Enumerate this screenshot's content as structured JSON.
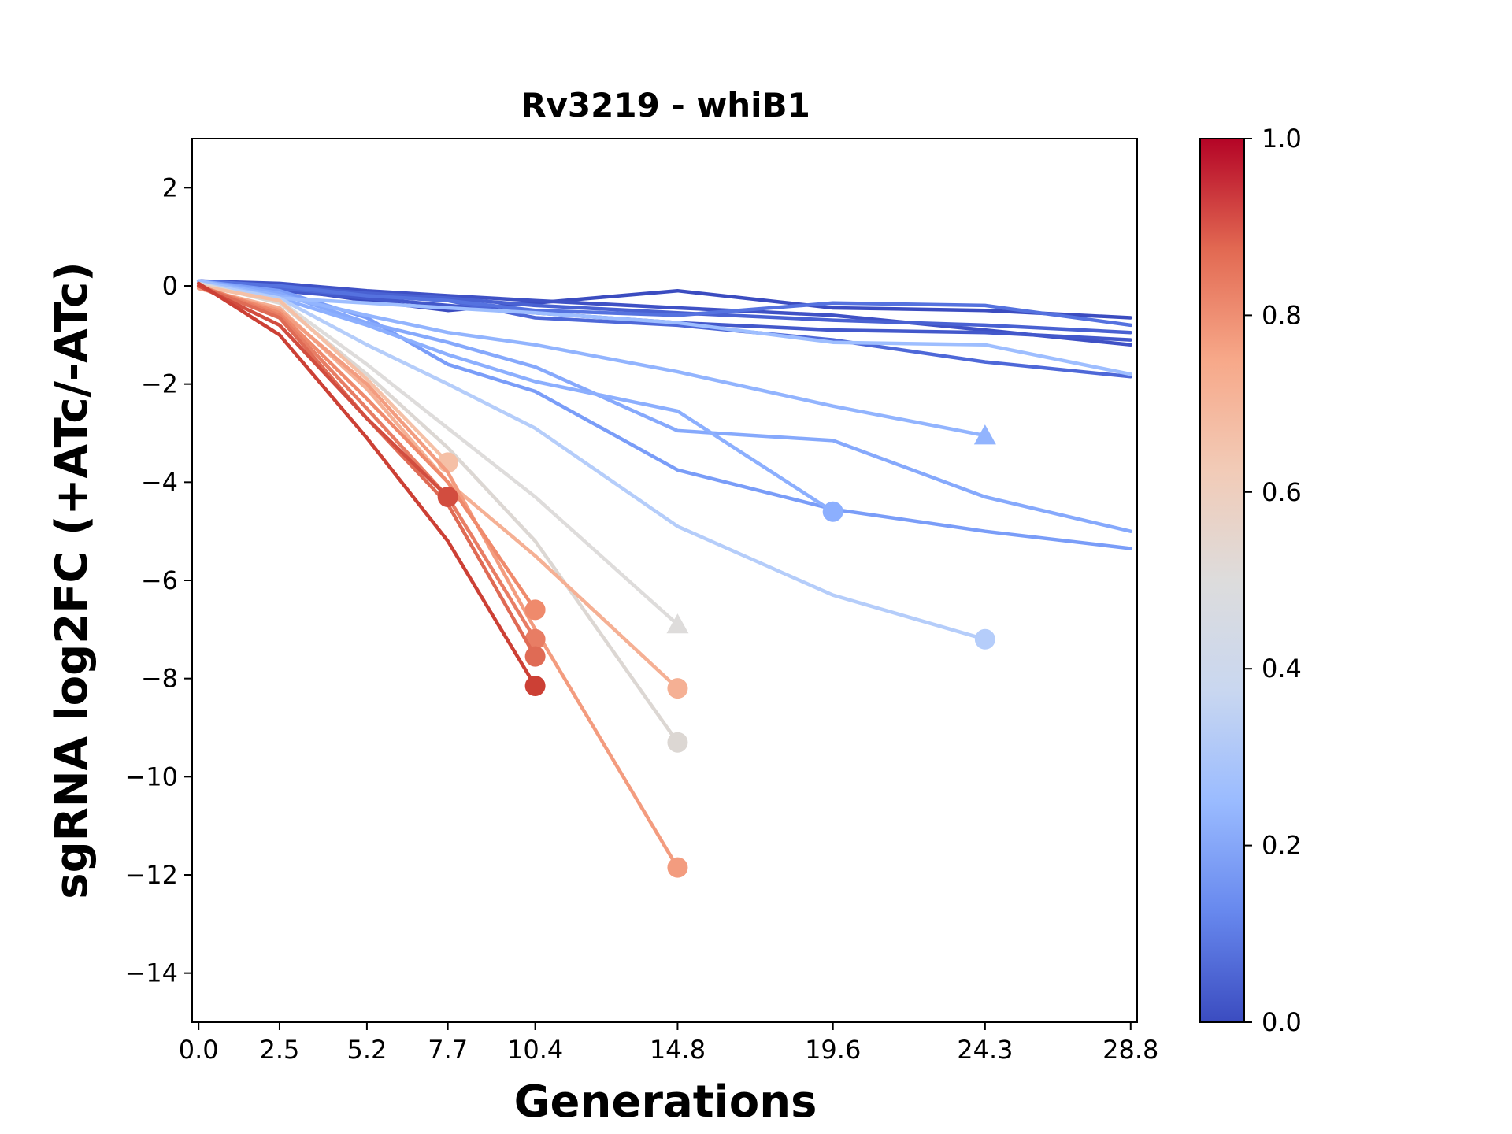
{
  "chart_data": {
    "type": "line",
    "title": "Rv3219 - whiB1",
    "xlabel": "Generations",
    "ylabel": "sgRNA log2FC (+ATc/-ATc)",
    "xticks": [
      0.0,
      2.5,
      5.2,
      7.7,
      10.4,
      14.8,
      19.6,
      24.3,
      28.8
    ],
    "xtick_labels": [
      "0.0",
      "2.5",
      "5.2",
      "7.7",
      "10.4",
      "14.8",
      "19.6",
      "24.3",
      "28.8"
    ],
    "yticks": [
      2,
      0,
      -2,
      -4,
      -6,
      -8,
      -10,
      -12,
      -14
    ],
    "ytick_labels": [
      "2",
      "0",
      "−2",
      "−4",
      "−6",
      "−8",
      "−10",
      "−12",
      "−14"
    ],
    "xlim": [
      -0.2,
      29.0
    ],
    "ylim": [
      -15,
      3
    ],
    "grid": false,
    "colorbar": {
      "colormap": "coolwarm",
      "range": [
        0.0,
        1.0
      ],
      "ticks": [
        0.0,
        0.2,
        0.4,
        0.6,
        0.8,
        1.0
      ],
      "tick_labels": [
        "0.0",
        "0.2",
        "0.4",
        "0.6",
        "0.8",
        "1.0"
      ],
      "stops": [
        "#3b4cc0",
        "#6788ee",
        "#9abbff",
        "#c9d7f0",
        "#dddcdc",
        "#f2cbb7",
        "#f7a889",
        "#e26952",
        "#b40426"
      ]
    },
    "series": [
      {
        "color": "#3b4cc0",
        "x": [
          0.0,
          2.5,
          5.2,
          7.7,
          10.4,
          14.8,
          19.6,
          24.3,
          28.8
        ],
        "y": [
          0.05,
          -0.05,
          -0.3,
          -0.5,
          -0.35,
          -0.1,
          -0.45,
          -0.5,
          -0.65
        ],
        "end_marker": "none"
      },
      {
        "color": "#3f51c5",
        "x": [
          0.0,
          2.5,
          5.2,
          7.7,
          10.4,
          14.8,
          19.6,
          24.3,
          28.8
        ],
        "y": [
          0.1,
          0.05,
          -0.1,
          -0.2,
          -0.3,
          -0.45,
          -0.6,
          -0.9,
          -1.2
        ],
        "end_marker": "none"
      },
      {
        "color": "#4358cb",
        "x": [
          0.0,
          2.5,
          5.2,
          7.7,
          10.4,
          14.8,
          19.6,
          24.3,
          28.8
        ],
        "y": [
          0.05,
          -0.1,
          -0.25,
          -0.4,
          -0.55,
          -0.75,
          -0.9,
          -0.95,
          -1.1
        ],
        "end_marker": "none"
      },
      {
        "color": "#4961d2",
        "x": [
          0.0,
          2.5,
          5.2,
          7.7,
          10.4,
          14.8,
          19.6,
          24.3,
          28.8
        ],
        "y": [
          0.1,
          0.0,
          -0.15,
          -0.25,
          -0.4,
          -0.55,
          -0.7,
          -0.8,
          -0.95
        ],
        "end_marker": "none"
      },
      {
        "color": "#4e68d8",
        "x": [
          0.0,
          2.5,
          5.2,
          7.7,
          10.4,
          14.8,
          19.6,
          24.3,
          28.8
        ],
        "y": [
          0.1,
          -0.05,
          -0.2,
          -0.3,
          -0.65,
          -0.8,
          -1.1,
          -1.55,
          -1.85
        ],
        "end_marker": "none"
      },
      {
        "color": "#5572df",
        "x": [
          0.0,
          2.5,
          5.2,
          7.7,
          10.4,
          14.8,
          19.6,
          24.3,
          28.8
        ],
        "y": [
          0.1,
          0.0,
          -0.2,
          -0.3,
          -0.5,
          -0.6,
          -0.35,
          -0.4,
          -0.8
        ],
        "end_marker": "none"
      },
      {
        "color": "#7a9df8",
        "x": [
          0.0,
          2.5,
          5.2,
          7.7,
          10.4,
          14.8,
          19.6,
          24.3,
          28.8
        ],
        "y": [
          0.1,
          -0.1,
          -0.65,
          -1.6,
          -2.15,
          -3.75,
          -4.55,
          -5.0,
          -5.35
        ],
        "end_marker": "none"
      },
      {
        "color": "#86a9fc",
        "x": [
          0.0,
          2.5,
          5.2,
          7.7,
          10.4,
          14.8,
          19.6,
          24.3,
          28.8
        ],
        "y": [
          0.1,
          -0.15,
          -0.75,
          -1.15,
          -1.65,
          -2.95,
          -3.15,
          -4.3,
          -5.0
        ],
        "end_marker": "none"
      },
      {
        "color": "#92b4fe",
        "x": [
          0.0,
          2.5,
          5.2,
          7.7,
          10.4,
          14.8,
          19.6,
          24.3
        ],
        "y": [
          0.1,
          -0.2,
          -0.6,
          -0.95,
          -1.2,
          -1.75,
          -2.45,
          -3.05
        ],
        "end_marker": "triangle"
      },
      {
        "color": "#8caffe",
        "x": [
          0.0,
          2.5,
          5.2,
          7.7,
          10.4,
          14.8,
          19.6
        ],
        "y": [
          0.05,
          -0.25,
          -0.8,
          -1.4,
          -1.95,
          -2.55,
          -4.6
        ],
        "end_marker": "circle"
      },
      {
        "color": "#9ebeff",
        "x": [
          0.0,
          2.5,
          5.2,
          7.7,
          10.4,
          14.8,
          19.6,
          24.3,
          28.8
        ],
        "y": [
          0.1,
          -0.25,
          -0.35,
          -0.45,
          -0.55,
          -0.75,
          -1.15,
          -1.2,
          -1.8
        ],
        "end_marker": "none"
      },
      {
        "color": "#b5cdfa",
        "x": [
          0.0,
          2.5,
          5.2,
          7.7,
          10.4,
          14.8,
          19.6,
          24.3
        ],
        "y": [
          0.05,
          -0.25,
          -1.2,
          -2.0,
          -2.9,
          -4.9,
          -6.3,
          -7.2
        ],
        "end_marker": "circle"
      },
      {
        "color": "#dedcdb",
        "x": [
          0.0,
          2.5,
          5.2,
          7.7,
          10.4,
          14.8
        ],
        "y": [
          0.0,
          -0.3,
          -1.6,
          -2.9,
          -4.3,
          -6.9
        ],
        "end_marker": "triangle"
      },
      {
        "color": "#dcd7d3",
        "x": [
          0.0,
          2.5,
          5.2,
          7.7,
          10.4,
          14.8
        ],
        "y": [
          0.05,
          -0.35,
          -1.8,
          -3.3,
          -5.2,
          -9.3
        ],
        "end_marker": "circle"
      },
      {
        "color": "#f5c0a6",
        "x": [
          0.0,
          2.5,
          5.2,
          7.7
        ],
        "y": [
          0.0,
          -0.3,
          -1.9,
          -3.6
        ],
        "end_marker": "circle"
      },
      {
        "color": "#f5b094",
        "x": [
          0.0,
          2.5,
          5.2,
          7.7,
          10.4,
          14.8
        ],
        "y": [
          -0.05,
          -0.45,
          -2.1,
          -4.0,
          -5.5,
          -8.2
        ],
        "end_marker": "circle"
      },
      {
        "color": "#f39c7f",
        "x": [
          0.0,
          2.5,
          5.2,
          7.7,
          10.4,
          14.8
        ],
        "y": [
          -0.05,
          -0.5,
          -2.0,
          -3.8,
          -7.0,
          -11.85
        ],
        "end_marker": "circle"
      },
      {
        "color": "#ef8a6c",
        "x": [
          0.0,
          2.5,
          5.2,
          7.7,
          10.4
        ],
        "y": [
          0.0,
          -0.55,
          -2.3,
          -4.0,
          -6.6
        ],
        "end_marker": "circle"
      },
      {
        "color": "#e87d64",
        "x": [
          0.0,
          2.5,
          5.2,
          7.7,
          10.4
        ],
        "y": [
          0.0,
          -0.6,
          -2.5,
          -4.3,
          -7.2
        ],
        "end_marker": "circle"
      },
      {
        "color": "#df6b55",
        "x": [
          0.0,
          2.5,
          5.2,
          7.7,
          10.4
        ],
        "y": [
          0.0,
          -0.65,
          -2.7,
          -4.45,
          -7.55
        ],
        "end_marker": "circle"
      },
      {
        "color": "#d24d3f",
        "x": [
          0.0,
          2.5,
          5.2,
          7.7
        ],
        "y": [
          0.0,
          -0.8,
          -2.7,
          -4.3
        ],
        "end_marker": "circle"
      },
      {
        "color": "#cc4035",
        "x": [
          0.0,
          2.5,
          5.2,
          7.7,
          10.4
        ],
        "y": [
          0.05,
          -1.0,
          -3.1,
          -5.2,
          -8.15
        ],
        "end_marker": "circle"
      }
    ]
  }
}
